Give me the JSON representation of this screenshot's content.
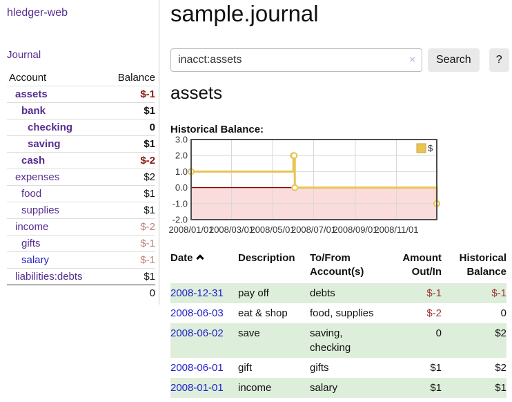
{
  "app": {
    "title": "hledger-web",
    "nav_journal": "Journal"
  },
  "sidebar": {
    "header": {
      "account": "Account",
      "balance": "Balance"
    },
    "accounts": [
      {
        "name": "assets",
        "depth": 1,
        "bold": true,
        "balance": "$-1",
        "negative": "strong"
      },
      {
        "name": "bank",
        "depth": 2,
        "bold": true,
        "balance": "$1"
      },
      {
        "name": "checking",
        "depth": 3,
        "bold": true,
        "balance": "0"
      },
      {
        "name": "saving",
        "depth": 3,
        "bold": true,
        "balance": "$1"
      },
      {
        "name": "cash",
        "depth": 2,
        "bold": true,
        "balance": "$-2",
        "negative": "strong"
      },
      {
        "name": "expenses",
        "depth": 1,
        "bold": false,
        "balance": "$2"
      },
      {
        "name": "food",
        "depth": 2,
        "bold": false,
        "balance": "$1"
      },
      {
        "name": "supplies",
        "depth": 2,
        "bold": false,
        "balance": "$1"
      },
      {
        "name": "income",
        "depth": 1,
        "bold": false,
        "balance": "$-2",
        "negative": "muted"
      },
      {
        "name": "gifts",
        "depth": 2,
        "bold": false,
        "balance": "$-1",
        "negative": "muted"
      },
      {
        "name": "salary",
        "depth": 2,
        "bold": false,
        "balance": "$-1",
        "negative": "muted",
        "link": "unvisited"
      },
      {
        "name": "liabilities:debts",
        "depth": 1,
        "bold": false,
        "balance": "$1"
      }
    ],
    "total": "0"
  },
  "main": {
    "title": "sample.journal",
    "search": {
      "value": "inacct:assets",
      "clear_icon": "×",
      "button_label": "Search",
      "help_label": "?"
    },
    "account_heading": "assets",
    "section_label": "Historical Balance:"
  },
  "chart_data": {
    "type": "line",
    "title": "Historical Balance:",
    "style": "step",
    "legend": [
      {
        "label": "$",
        "color": "#e9c353"
      }
    ],
    "x_range": [
      "2008-01-01",
      "2008-12-31"
    ],
    "ylim": [
      -2,
      3
    ],
    "yticks": [
      {
        "label": "3.0",
        "value": 3
      },
      {
        "label": "2.0",
        "value": 2
      },
      {
        "label": "1.0",
        "value": 1
      },
      {
        "label": "0.0",
        "value": 0
      },
      {
        "label": "-1.0",
        "value": -1
      },
      {
        "label": "-2.0",
        "value": -2
      }
    ],
    "xticks": [
      {
        "label": "2008/01/01",
        "value": "2008-01-01"
      },
      {
        "label": "2008/03/01",
        "value": "2008-03-01"
      },
      {
        "label": "2008/05/01",
        "value": "2008-05-01"
      },
      {
        "label": "2008/07/01",
        "value": "2008-07-01"
      },
      {
        "label": "2008/09/01",
        "value": "2008-09-01"
      },
      {
        "label": "2008/11/01",
        "value": "2008-11-01"
      }
    ],
    "series": [
      {
        "name": "$",
        "color": "#e9c353",
        "points": [
          {
            "x": "2008-01-01",
            "y": 1
          },
          {
            "x": "2008-06-01",
            "y": 2
          },
          {
            "x": "2008-06-02",
            "y": 2
          },
          {
            "x": "2008-06-03",
            "y": 0
          },
          {
            "x": "2008-12-31",
            "y": -1
          }
        ]
      }
    ],
    "negative_region": {
      "below": 0,
      "color": "#fadcdc",
      "line_color": "#8b0000"
    },
    "grid": true
  },
  "register": {
    "headers": {
      "date": "Date",
      "description": "Description",
      "accounts": "To/From Account(s)",
      "amount": "Amount Out/In",
      "balance": "Historical Balance"
    },
    "rows": [
      {
        "date": "2008-12-31",
        "description": "pay off",
        "accounts": "debts",
        "amount": "$-1",
        "balance": "$-1"
      },
      {
        "date": "2008-06-03",
        "description": "eat & shop",
        "accounts": "food, supplies",
        "amount": "$-2",
        "balance": "0"
      },
      {
        "date": "2008-06-02",
        "description": "save",
        "accounts": "saving, checking",
        "amount": "0",
        "balance": "$2"
      },
      {
        "date": "2008-06-01",
        "description": "gift",
        "accounts": "gifts",
        "amount": "$1",
        "balance": "$2"
      },
      {
        "date": "2008-01-01",
        "description": "income",
        "accounts": "salary",
        "amount": "$1",
        "balance": "$1"
      }
    ]
  },
  "colors": {
    "link_visited": "#552d90",
    "link_unvisited": "#2222cc",
    "negative_strong": "#8f1713",
    "negative_muted": "#c1807d",
    "negative_table": "#9b3434",
    "row_green": "#ddeeda",
    "chart_line": "#e9c353",
    "chart_negative_fill": "#fadcdc",
    "chart_zero_line": "#8b0000",
    "button_bg": "#e9e9e9"
  }
}
